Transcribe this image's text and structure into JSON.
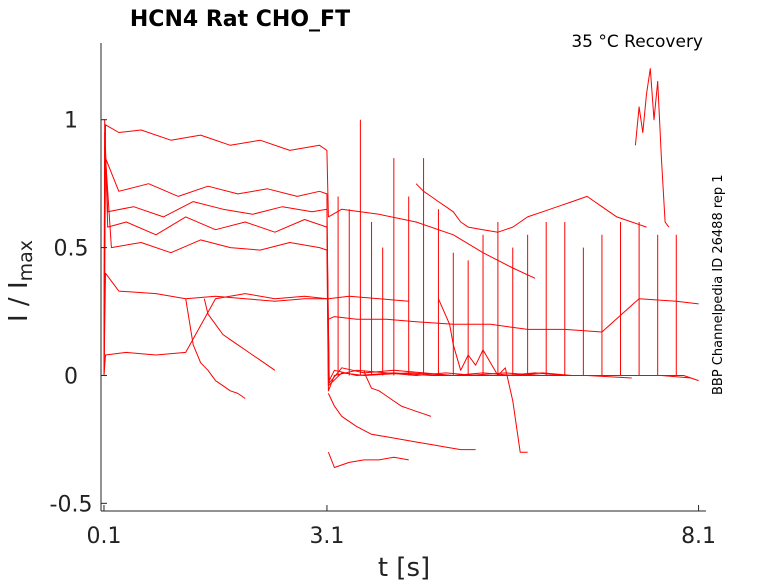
{
  "chart_data": {
    "type": "line",
    "title": "HCN4  Rat  CHO_FT",
    "annotation": "35 °C  Recovery",
    "side_label": "BBP Channelpedia ID 26488 rep 1",
    "xlabel": "t [s]",
    "ylabel_main": "I / I",
    "ylabel_sub": "max",
    "x_ticks": [
      0.1,
      3.1,
      8.1
    ],
    "x_tick_labels": [
      "0.1",
      "3.1",
      "8.1"
    ],
    "y_ticks": [
      -0.5,
      0,
      0.5,
      1
    ],
    "y_tick_labels": [
      "-0.5",
      "0",
      "0.5",
      "1"
    ],
    "xlim": [
      0.06,
      8.2
    ],
    "ylim": [
      -0.53,
      1.3
    ],
    "grid": false,
    "legend": "none",
    "color": "#ff0000",
    "series": [
      {
        "x": [
          0.1,
          0.11,
          0.15,
          0.4,
          0.8,
          1.2,
          1.6,
          2.0,
          2.4,
          2.8,
          3.1,
          3.13,
          3.2,
          3.5,
          4.0,
          4.5,
          5.0,
          5.5,
          6.0,
          6.5,
          7.0,
          7.5,
          7.9,
          8.1
        ],
        "y": [
          0.0,
          1.0,
          0.58,
          0.6,
          0.55,
          0.62,
          0.57,
          0.6,
          0.56,
          0.61,
          0.58,
          -0.02,
          0.02,
          0.0,
          0.01,
          0.0,
          0.0,
          0.01,
          0.0,
          0.0,
          0.0,
          0.0,
          0.0,
          -0.02
        ]
      },
      {
        "x": [
          0.1,
          0.11,
          0.15,
          0.5,
          0.9,
          1.3,
          1.7,
          2.1,
          2.5,
          2.9,
          3.1,
          3.13,
          3.3,
          3.6,
          4.0,
          4.4,
          4.8,
          5.2,
          5.6,
          6.0,
          6.4,
          6.8,
          7.2,
          7.6,
          8.0
        ],
        "y": [
          0.0,
          0.95,
          0.64,
          0.66,
          0.62,
          0.68,
          0.65,
          0.63,
          0.66,
          0.64,
          0.65,
          -0.03,
          0.03,
          0.01,
          0.02,
          0.01,
          0.0,
          0.01,
          0.0,
          0.01,
          0.0,
          0.0,
          0.0,
          0.0,
          -0.01
        ]
      },
      {
        "x": [
          0.1,
          0.11,
          0.2,
          0.6,
          1.0,
          1.4,
          1.8,
          2.2,
          2.6,
          3.0,
          3.1,
          3.12,
          3.2,
          3.5,
          3.9,
          4.3,
          4.7,
          5.1,
          5.5,
          5.9,
          6.3,
          6.7,
          7.1,
          7.5
        ],
        "y": [
          0.0,
          0.9,
          0.5,
          0.52,
          0.48,
          0.53,
          0.5,
          0.49,
          0.52,
          0.5,
          0.49,
          -0.06,
          0.0,
          0.02,
          0.01,
          0.0,
          0.01,
          0.0,
          0.0,
          0.01,
          0.0,
          0.0,
          0.0,
          0.0
        ]
      },
      {
        "x": [
          0.1,
          0.12,
          0.3,
          0.7,
          1.1,
          1.5,
          1.9,
          2.3,
          2.7,
          3.0,
          3.1,
          3.12,
          3.3,
          3.6,
          4.2,
          4.8,
          5.4,
          6.0,
          6.6,
          7.2
        ],
        "y": [
          0.0,
          0.85,
          0.72,
          0.75,
          0.7,
          0.74,
          0.71,
          0.73,
          0.7,
          0.72,
          0.71,
          -0.04,
          0.01,
          0.0,
          0.01,
          0.0,
          0.0,
          0.0,
          0.0,
          -0.01
        ]
      },
      {
        "x": [
          0.1,
          0.12,
          0.3,
          0.8,
          1.2,
          1.6,
          2.0,
          2.4,
          2.8,
          3.1,
          3.12,
          3.4,
          3.8,
          4.2
        ],
        "y": [
          0.0,
          0.4,
          0.33,
          0.32,
          0.3,
          0.31,
          0.3,
          0.29,
          0.3,
          0.3,
          0.3,
          0.31,
          0.3,
          0.29
        ]
      },
      {
        "x": [
          0.1,
          0.12,
          0.4,
          0.8,
          1.2,
          1.6,
          2.0,
          2.4,
          2.8,
          3.1
        ],
        "y": [
          0.0,
          0.08,
          0.09,
          0.08,
          0.09,
          0.3,
          0.32,
          0.3,
          0.31,
          0.3
        ]
      },
      {
        "x": [
          0.1,
          0.12,
          0.3,
          0.6,
          1.0,
          1.4,
          1.8,
          2.2,
          2.6,
          3.0,
          3.1,
          3.12,
          3.3,
          3.8,
          4.3,
          4.8,
          5.2,
          5.6,
          5.9
        ],
        "y": [
          0.0,
          0.98,
          0.95,
          0.96,
          0.92,
          0.94,
          0.9,
          0.92,
          0.88,
          0.9,
          0.88,
          0.62,
          0.65,
          0.63,
          0.6,
          0.55,
          0.48,
          0.42,
          0.38
        ]
      },
      {
        "x": [
          1.2,
          1.3,
          1.4,
          1.5,
          1.6,
          1.7,
          1.8,
          1.9,
          2.0
        ],
        "y": [
          0.3,
          0.12,
          0.05,
          0.02,
          -0.02,
          -0.04,
          -0.06,
          -0.07,
          -0.09
        ]
      },
      {
        "x": [
          1.45,
          1.5,
          1.6,
          1.7,
          1.8,
          1.9,
          2.0,
          2.1,
          2.2,
          2.3,
          2.4
        ],
        "y": [
          0.3,
          0.24,
          0.2,
          0.16,
          0.14,
          0.12,
          0.1,
          0.08,
          0.06,
          0.04,
          0.02
        ]
      },
      {
        "x": [
          3.12,
          3.2,
          3.3,
          3.5,
          3.7,
          3.9,
          4.1,
          4.3,
          4.5,
          4.7,
          4.9,
          5.1
        ],
        "y": [
          -0.07,
          -0.12,
          -0.16,
          -0.2,
          -0.23,
          -0.24,
          -0.25,
          -0.26,
          -0.27,
          -0.28,
          -0.29,
          -0.29
        ]
      },
      {
        "x": [
          3.12,
          3.2,
          3.4,
          3.6,
          3.8,
          4.0,
          4.2
        ],
        "y": [
          -0.3,
          -0.36,
          -0.34,
          -0.33,
          -0.33,
          -0.32,
          -0.33
        ]
      },
      {
        "x": [
          3.12,
          3.2,
          3.5,
          3.9,
          4.3,
          4.8,
          5.3,
          5.8,
          6.3,
          6.8,
          7.3,
          7.8,
          8.1
        ],
        "y": [
          0.22,
          0.23,
          0.22,
          0.22,
          0.21,
          0.2,
          0.2,
          0.18,
          0.18,
          0.17,
          0.3,
          0.29,
          0.28
        ]
      },
      {
        "x": [
          4.6,
          4.75,
          4.8,
          4.9,
          5.0,
          5.1,
          5.2,
          5.3,
          5.4,
          5.5,
          5.6,
          5.7,
          5.8
        ],
        "y": [
          0.3,
          0.2,
          0.12,
          0.02,
          0.08,
          0.04,
          0.1,
          0.05,
          0.0,
          0.03,
          -0.1,
          -0.3,
          -0.3
        ]
      },
      {
        "x": [
          4.3,
          4.4,
          4.5,
          4.6,
          4.7,
          4.8,
          4.9,
          5.0,
          5.2,
          5.4,
          5.6,
          5.8,
          6.0,
          6.2,
          6.4,
          6.6,
          6.8,
          7.0,
          7.2,
          7.4
        ],
        "y": [
          0.75,
          0.72,
          0.7,
          0.68,
          0.66,
          0.64,
          0.6,
          0.58,
          0.57,
          0.56,
          0.58,
          0.62,
          0.64,
          0.66,
          0.68,
          0.7,
          0.66,
          0.62,
          0.6,
          0.58
        ]
      },
      {
        "x": [
          7.25,
          7.3,
          7.35,
          7.4,
          7.45,
          7.5,
          7.55,
          7.6,
          7.65,
          7.7
        ],
        "y": [
          0.9,
          1.05,
          0.95,
          1.1,
          1.2,
          1.0,
          1.15,
          0.85,
          0.6,
          0.58
        ]
      },
      {
        "x": [
          3.6,
          3.62,
          3.7,
          3.8,
          3.9,
          4.0,
          4.1,
          4.2,
          4.3,
          4.4,
          4.5
        ],
        "y": [
          0.02,
          0.0,
          -0.05,
          -0.06,
          -0.08,
          -0.1,
          -0.12,
          -0.13,
          -0.14,
          -0.15,
          -0.16
        ]
      }
    ],
    "spikes_x": [
      3.25,
      3.4,
      3.55,
      3.7,
      3.85,
      4.0,
      4.2,
      4.4,
      4.6,
      4.8,
      5.0,
      5.2,
      5.4,
      5.6,
      5.8,
      6.05,
      6.3,
      6.55,
      6.8,
      7.05,
      7.3,
      7.55,
      7.8
    ],
    "spikes_top": [
      0.7,
      0.65,
      1.0,
      0.6,
      0.5,
      0.85,
      0.7,
      0.85,
      0.65,
      0.48,
      0.45,
      0.55,
      0.6,
      0.5,
      0.55,
      0.6,
      0.6,
      0.5,
      0.55,
      0.6,
      0.6,
      0.55,
      0.55
    ]
  }
}
